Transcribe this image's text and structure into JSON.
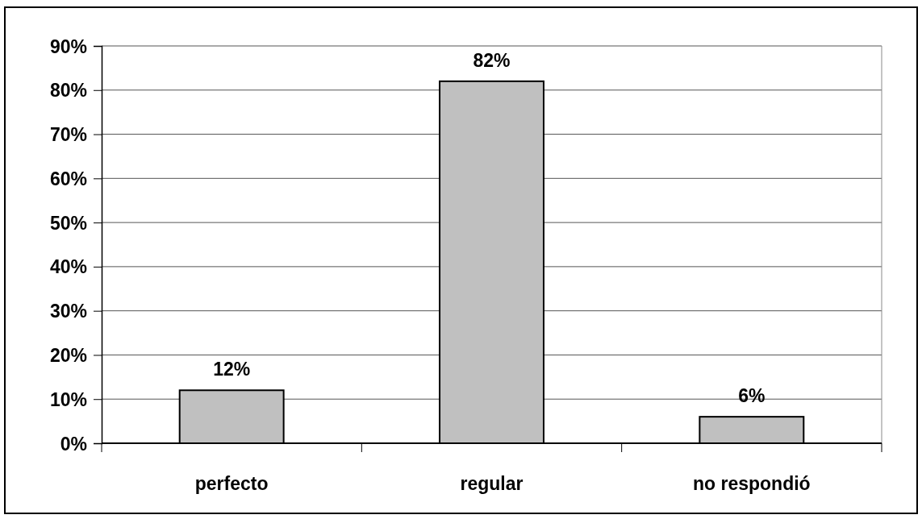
{
  "chart_data": {
    "type": "bar",
    "categories": [
      "perfecto",
      "regular",
      "no respondió"
    ],
    "values": [
      12,
      82,
      6
    ],
    "color": "#c0c0c0",
    "value_labels": [
      "12%",
      "82%",
      "6%"
    ],
    "ylim": [
      0,
      90
    ],
    "yticks": [
      {
        "value": 0,
        "label": "0%"
      },
      {
        "value": 10,
        "label": "10%"
      },
      {
        "value": 20,
        "label": "20%"
      },
      {
        "value": 30,
        "label": "30%"
      },
      {
        "value": 40,
        "label": "40%"
      },
      {
        "value": 50,
        "label": "50%"
      },
      {
        "value": 60,
        "label": "60%"
      },
      {
        "value": 70,
        "label": "70%"
      },
      {
        "value": 80,
        "label": "80%"
      },
      {
        "value": 90,
        "label": "90%"
      }
    ],
    "grid": "y"
  }
}
